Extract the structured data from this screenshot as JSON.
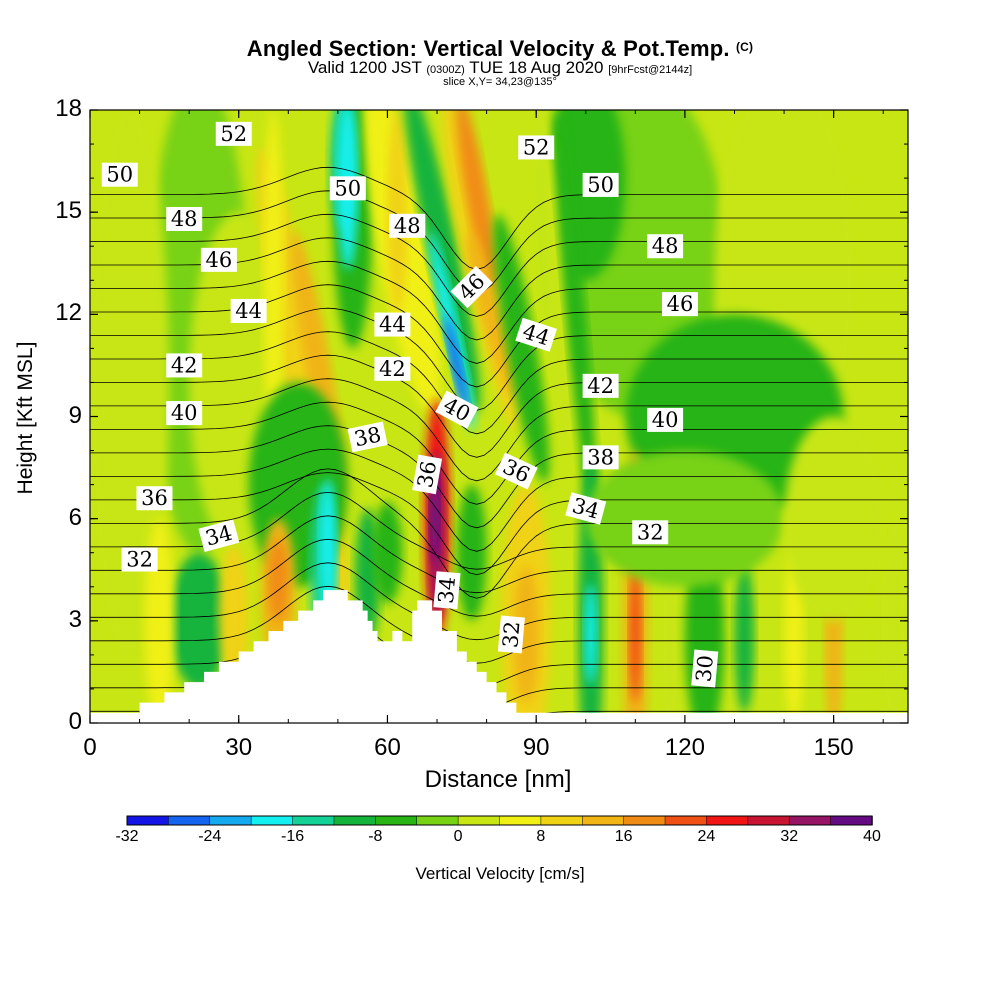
{
  "title": "Angled Section: Vertical Velocity & Pot.Temp.",
  "title_mark": "(C)",
  "subtitle": {
    "part1": "Valid 1200 JST",
    "part2": "(0300Z)",
    "part3": "TUE 18 Aug 2020",
    "part4": "[9hrFcst@2144z]"
  },
  "slice_text": "slice X,Y= 34,23@135°",
  "chart_data": {
    "type": "heatmap",
    "xlabel": "Distance [nm]",
    "ylabel": "Height [Kft MSL]",
    "xlim": [
      0,
      165
    ],
    "ylim": [
      0,
      18
    ],
    "x_ticks": [
      0,
      30,
      60,
      90,
      120,
      150
    ],
    "y_ticks": [
      0,
      3,
      6,
      9,
      12,
      15,
      18
    ],
    "colorbar": {
      "label": "Vertical Velocity [cm/s]",
      "min": -32,
      "max": 40,
      "step": 4,
      "tick_labels": [
        "-32",
        "-24",
        "-16",
        "-8",
        "0",
        "8",
        "16",
        "24",
        "32",
        "40"
      ],
      "colors": [
        "#1414e6",
        "#1464f0",
        "#14aaf0",
        "#14f0f0",
        "#14d296",
        "#14b43c",
        "#28b414",
        "#78d214",
        "#c8e614",
        "#f0f014",
        "#f0d214",
        "#f0b414",
        "#f08c14",
        "#f05014",
        "#f01414",
        "#c81432",
        "#961464",
        "#640a82"
      ]
    },
    "terrain_profile": [
      [
        0,
        0.3
      ],
      [
        10,
        0.3
      ],
      [
        10,
        0.6
      ],
      [
        15,
        0.6
      ],
      [
        15,
        0.9
      ],
      [
        19,
        0.9
      ],
      [
        19,
        1.2
      ],
      [
        23,
        1.2
      ],
      [
        23,
        1.5
      ],
      [
        26,
        1.5
      ],
      [
        26,
        1.8
      ],
      [
        30,
        1.8
      ],
      [
        30,
        2.1
      ],
      [
        33,
        2.1
      ],
      [
        33,
        2.4
      ],
      [
        36,
        2.4
      ],
      [
        36,
        2.7
      ],
      [
        39,
        2.7
      ],
      [
        39,
        3.0
      ],
      [
        42,
        3.0
      ],
      [
        42,
        3.3
      ],
      [
        45,
        3.3
      ],
      [
        45,
        3.6
      ],
      [
        47,
        3.6
      ],
      [
        47,
        3.9
      ],
      [
        52,
        3.9
      ],
      [
        52,
        3.6
      ],
      [
        55,
        3.6
      ],
      [
        55,
        3.3
      ],
      [
        56,
        3.3
      ],
      [
        56,
        3.0
      ],
      [
        57,
        3.0
      ],
      [
        57,
        2.7
      ],
      [
        58,
        2.7
      ],
      [
        58,
        2.4
      ],
      [
        61,
        2.4
      ],
      [
        61,
        2.7
      ],
      [
        63,
        2.7
      ],
      [
        63,
        2.4
      ],
      [
        65,
        2.4
      ],
      [
        65,
        3.3
      ],
      [
        66,
        3.3
      ],
      [
        66,
        3.6
      ],
      [
        69,
        3.6
      ],
      [
        69,
        3.3
      ],
      [
        71,
        3.3
      ],
      [
        71,
        2.7
      ],
      [
        74,
        2.7
      ],
      [
        74,
        2.1
      ],
      [
        76,
        2.1
      ],
      [
        76,
        1.8
      ],
      [
        78,
        1.8
      ],
      [
        78,
        1.5
      ],
      [
        80,
        1.5
      ],
      [
        80,
        1.2
      ],
      [
        82,
        1.2
      ],
      [
        82,
        0.9
      ],
      [
        84,
        0.9
      ],
      [
        84,
        0.6
      ],
      [
        86,
        0.6
      ],
      [
        86,
        0.3
      ],
      [
        165,
        0.3
      ]
    ],
    "theta_contour_labels": [
      {
        "text": "52",
        "x": 29,
        "y": 17.3,
        "angle": 0
      },
      {
        "text": "52",
        "x": 90,
        "y": 16.9,
        "angle": 0
      },
      {
        "text": "50",
        "x": 6,
        "y": 16.1,
        "angle": 0
      },
      {
        "text": "50",
        "x": 52,
        "y": 15.7,
        "angle": 0
      },
      {
        "text": "50",
        "x": 103,
        "y": 15.8,
        "angle": 0
      },
      {
        "text": "48",
        "x": 19,
        "y": 14.8,
        "angle": 0
      },
      {
        "text": "48",
        "x": 64,
        "y": 14.6,
        "angle": 0
      },
      {
        "text": "48",
        "x": 116,
        "y": 14.0,
        "angle": 0
      },
      {
        "text": "46",
        "x": 26,
        "y": 13.6,
        "angle": 0
      },
      {
        "text": "46",
        "x": 77,
        "y": 12.8,
        "angle": -45
      },
      {
        "text": "46",
        "x": 119,
        "y": 12.3,
        "angle": 0
      },
      {
        "text": "44",
        "x": 32,
        "y": 12.1,
        "angle": 0
      },
      {
        "text": "44",
        "x": 61,
        "y": 11.7,
        "angle": 0
      },
      {
        "text": "44",
        "x": 90,
        "y": 11.4,
        "angle": 18
      },
      {
        "text": "42",
        "x": 19,
        "y": 10.5,
        "angle": 0
      },
      {
        "text": "42",
        "x": 61,
        "y": 10.4,
        "angle": 0
      },
      {
        "text": "42",
        "x": 103,
        "y": 9.9,
        "angle": 0
      },
      {
        "text": "40",
        "x": 19,
        "y": 9.1,
        "angle": 0
      },
      {
        "text": "40",
        "x": 74,
        "y": 9.2,
        "angle": 28
      },
      {
        "text": "40",
        "x": 116,
        "y": 8.9,
        "angle": 0
      },
      {
        "text": "38",
        "x": 56,
        "y": 8.4,
        "angle": -12
      },
      {
        "text": "38",
        "x": 103,
        "y": 7.8,
        "angle": 0
      },
      {
        "text": "36",
        "x": 68,
        "y": 7.3,
        "angle": -80
      },
      {
        "text": "36",
        "x": 86,
        "y": 7.4,
        "angle": 25
      },
      {
        "text": "36",
        "x": 13,
        "y": 6.6,
        "angle": 0
      },
      {
        "text": "34",
        "x": 100,
        "y": 6.3,
        "angle": 15
      },
      {
        "text": "34",
        "x": 26,
        "y": 5.5,
        "angle": -15
      },
      {
        "text": "34",
        "x": 72,
        "y": 3.9,
        "angle": -85
      },
      {
        "text": "32",
        "x": 113,
        "y": 5.6,
        "angle": 0
      },
      {
        "text": "32",
        "x": 10,
        "y": 4.8,
        "angle": 0
      },
      {
        "text": "32",
        "x": 85,
        "y": 2.6,
        "angle": -85
      },
      {
        "text": "30",
        "x": 124,
        "y": 1.6,
        "angle": -85
      }
    ]
  }
}
